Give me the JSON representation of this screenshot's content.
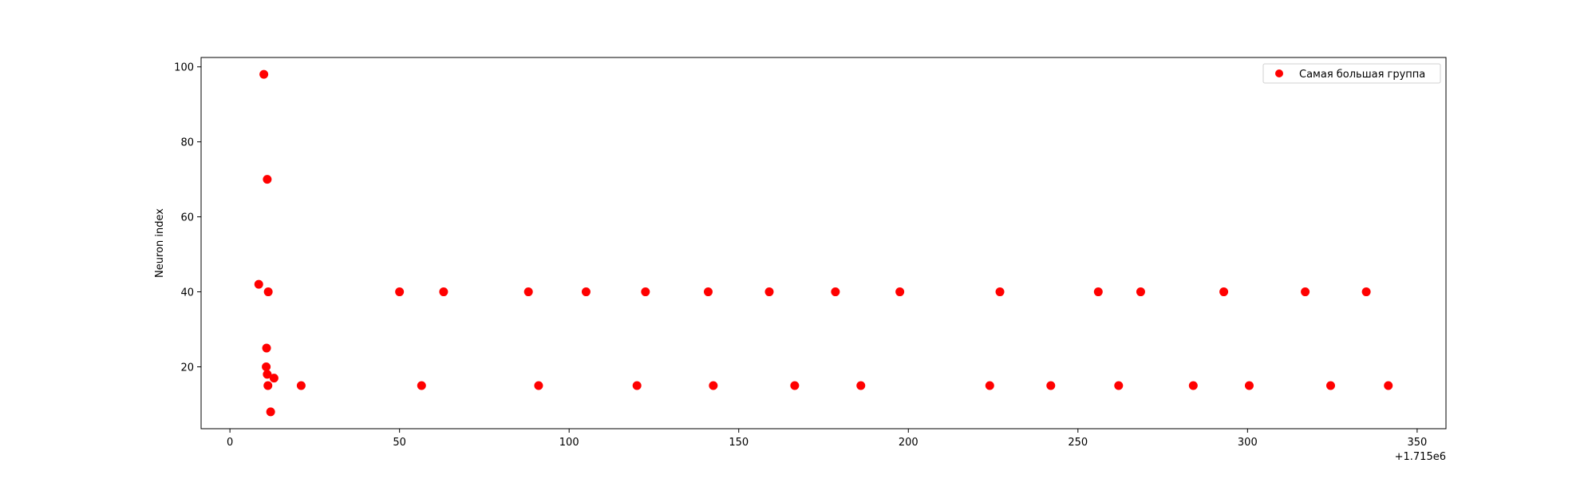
{
  "chart_data": {
    "type": "scatter",
    "title": "",
    "xlabel": "",
    "ylabel": "Neuron index",
    "x_offset_label": "+1.715e6",
    "xlim": [
      -8.5,
      358.5
    ],
    "ylim": [
      3.5,
      102.5
    ],
    "x_ticks": [
      0,
      50,
      100,
      150,
      200,
      250,
      300,
      350
    ],
    "x_tick_labels": [
      "0",
      "50",
      "100",
      "150",
      "200",
      "250",
      "300",
      "350"
    ],
    "y_ticks": [
      20,
      40,
      60,
      80,
      100
    ],
    "y_tick_labels": [
      "20",
      "40",
      "60",
      "80",
      "100"
    ],
    "grid": false,
    "legend_position": "top-right",
    "series": [
      {
        "name": "Самая большая группа",
        "color": "#ff0000",
        "points": [
          [
            10,
            98
          ],
          [
            11,
            70
          ],
          [
            8.5,
            42
          ],
          [
            11.3,
            40
          ],
          [
            10.8,
            25
          ],
          [
            10.7,
            20
          ],
          [
            11,
            18
          ],
          [
            13,
            17
          ],
          [
            11.2,
            15
          ],
          [
            12,
            8
          ],
          [
            21,
            15
          ],
          [
            50,
            40
          ],
          [
            63,
            40
          ],
          [
            88,
            40
          ],
          [
            105,
            40
          ],
          [
            122.5,
            40
          ],
          [
            141,
            40
          ],
          [
            159,
            40
          ],
          [
            178.5,
            40
          ],
          [
            197.5,
            40
          ],
          [
            227,
            40
          ],
          [
            256,
            40
          ],
          [
            268.5,
            40
          ],
          [
            293,
            40
          ],
          [
            317,
            40
          ],
          [
            335,
            40
          ],
          [
            56.5,
            15
          ],
          [
            91,
            15
          ],
          [
            120,
            15
          ],
          [
            142.5,
            15
          ],
          [
            166.5,
            15
          ],
          [
            186,
            15
          ],
          [
            224,
            15
          ],
          [
            242,
            15
          ],
          [
            262,
            15
          ],
          [
            284,
            15
          ],
          [
            300.5,
            15
          ],
          [
            324.5,
            15
          ],
          [
            341.5,
            15
          ]
        ]
      }
    ]
  }
}
